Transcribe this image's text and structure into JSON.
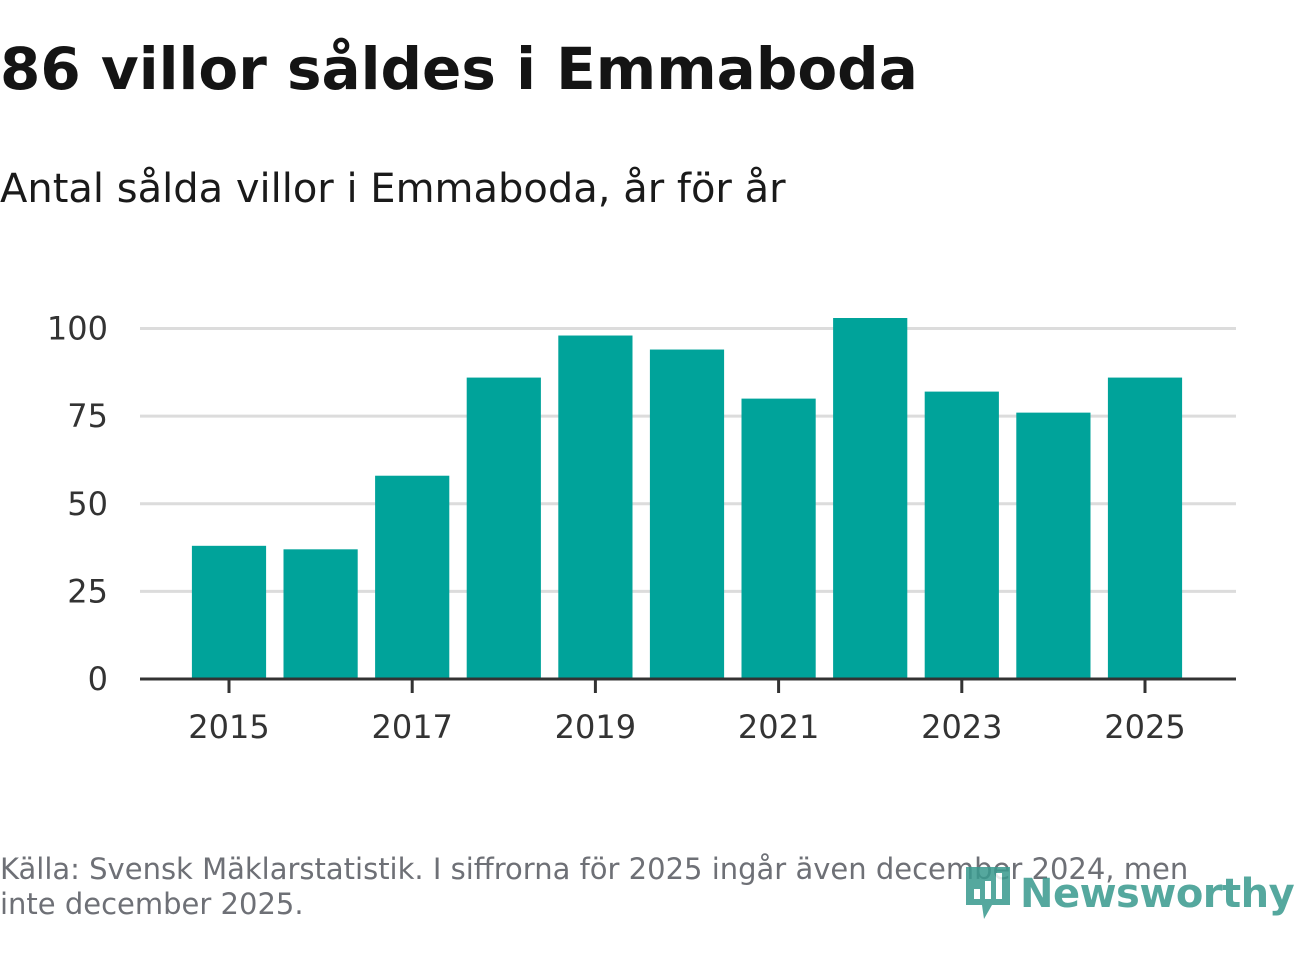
{
  "header": {
    "title": "86 villor såldes i Emmaboda",
    "subtitle": "Antal sålda villor i Emmaboda, år för år"
  },
  "footer": {
    "source": "Källa: Svensk Mäklarstatistik. I siffrorna för 2025 ingår även december 2024, men inte december 2025.",
    "brand": "Newsworthy",
    "brand_icon": "newsworthy-logo-icon"
  },
  "colors": {
    "bar": "#00A39A",
    "grid": "#dcdcdc",
    "axis": "#333333",
    "brand": "#3a9a8f"
  },
  "chart_data": {
    "type": "bar",
    "title": "86 villor såldes i Emmaboda",
    "subtitle": "Antal sålda villor i Emmaboda, år för år",
    "categories": [
      2015,
      2016,
      2017,
      2018,
      2019,
      2020,
      2021,
      2022,
      2023,
      2024,
      2025
    ],
    "values": [
      38,
      37,
      58,
      86,
      98,
      94,
      80,
      103,
      82,
      76,
      86
    ],
    "xlabel": "",
    "ylabel": "",
    "ylim": [
      0,
      103
    ],
    "yticks": [
      0,
      25,
      50,
      75,
      100
    ],
    "xticks": [
      2015,
      2017,
      2019,
      2021,
      2023,
      2025
    ],
    "grid": true,
    "legend": "none"
  }
}
